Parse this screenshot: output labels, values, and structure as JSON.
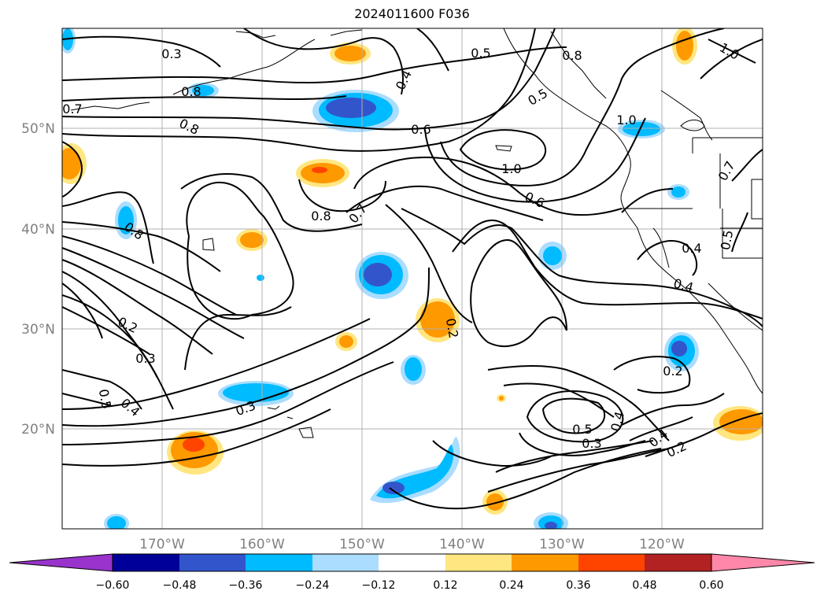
{
  "title": "2024011600 F036",
  "map": {
    "lon_range": [
      -180,
      -110
    ],
    "lat_range": [
      10,
      60
    ],
    "lat_ticks": [
      "50°N",
      "40°N",
      "30°N",
      "20°N"
    ],
    "lon_ticks": [
      "170°W",
      "160°W",
      "150°W",
      "140°W",
      "130°W",
      "120°W"
    ],
    "grid": true,
    "contour_color": "#000000"
  },
  "contour_labels": [
    "0.3",
    "0.5",
    "0.8",
    "1.0",
    "0.4",
    "0.8",
    "0.5",
    "0.7",
    "0.8",
    "0.6",
    "1.0",
    "1.0",
    "0.6",
    "0.7",
    "0.8",
    "0.8",
    "0.7",
    "0.4",
    "0.5",
    "0.4",
    "0.2",
    "0.2",
    "0.3",
    "0.2",
    "0.5",
    "0.4",
    "0.3",
    "0.5",
    "0.3",
    "0.4",
    "0.4",
    "0.2"
  ],
  "colorbar": {
    "ticks": [
      "−0.60",
      "−0.48",
      "−0.36",
      "−0.24",
      "−0.12",
      "0.12",
      "0.24",
      "0.36",
      "0.48",
      "0.60"
    ],
    "colors": [
      "#9933cc",
      "#000099",
      "#3355cc",
      "#00bbff",
      "#aaddff",
      "#ffffff",
      "#ffe680",
      "#ff9900",
      "#ff4400",
      "#b22222",
      "#ff88aa"
    ]
  },
  "palette": {
    "neg_light": "#aaddff",
    "neg_mid": "#00bbff",
    "neg_dark": "#3355cc",
    "pos_light": "#ffe680",
    "pos_mid": "#ff9900",
    "pos_dark": "#ff4400"
  }
}
